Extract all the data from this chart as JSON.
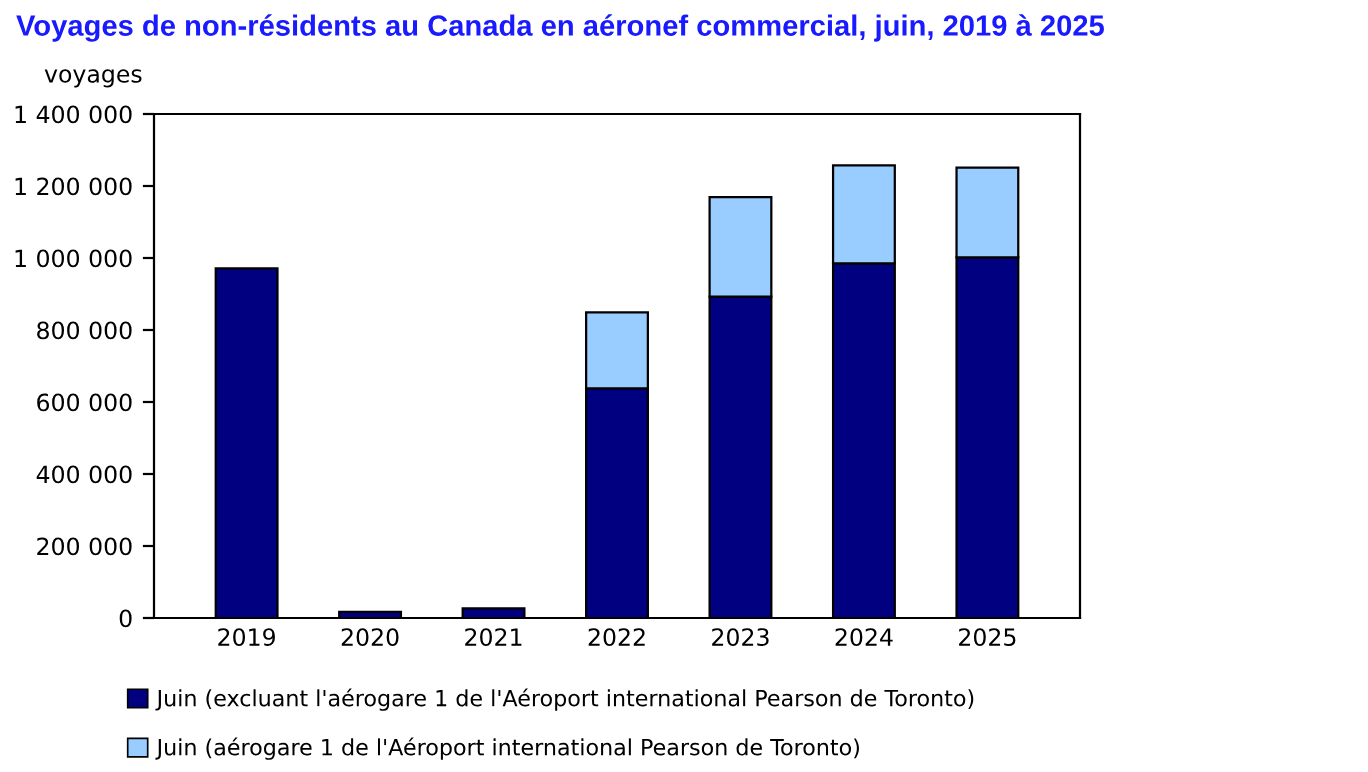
{
  "chart_data": {
    "type": "bar",
    "title": "Voyages de non-résidents au Canada en aéronef commercial, juin, 2019 à 2025",
    "ylabel": "voyages",
    "categories": [
      "2019",
      "2020",
      "2021",
      "2022",
      "2023",
      "2024",
      "2025"
    ],
    "stacked": true,
    "series": [
      {
        "name": "Juin (excluant l'aérogare 1 de l'Aéroport international Pearson de Toronto)",
        "color": "#000080",
        "values": [
          971000,
          17000,
          27000,
          638000,
          893000,
          985000,
          1002000
        ]
      },
      {
        "name": "Juin (aérogare 1 de l'Aéroport international Pearson de Toronto)",
        "color": "#99ccff",
        "values": [
          null,
          null,
          null,
          211000,
          276000,
          272000,
          249000
        ]
      }
    ],
    "ylim": [
      0,
      1400000
    ],
    "yticks": [
      {
        "value": 0,
        "label": "0"
      },
      {
        "value": 200000,
        "label": "200 000"
      },
      {
        "value": 400000,
        "label": "400 000"
      },
      {
        "value": 600000,
        "label": "600 000"
      },
      {
        "value": 800000,
        "label": "800 000"
      },
      {
        "value": 1000000,
        "label": "1 000 000"
      },
      {
        "value": 1200000,
        "label": "1 200 000"
      },
      {
        "value": 1400000,
        "label": "1 400 000"
      }
    ],
    "grid": false,
    "legend": "bottom"
  }
}
